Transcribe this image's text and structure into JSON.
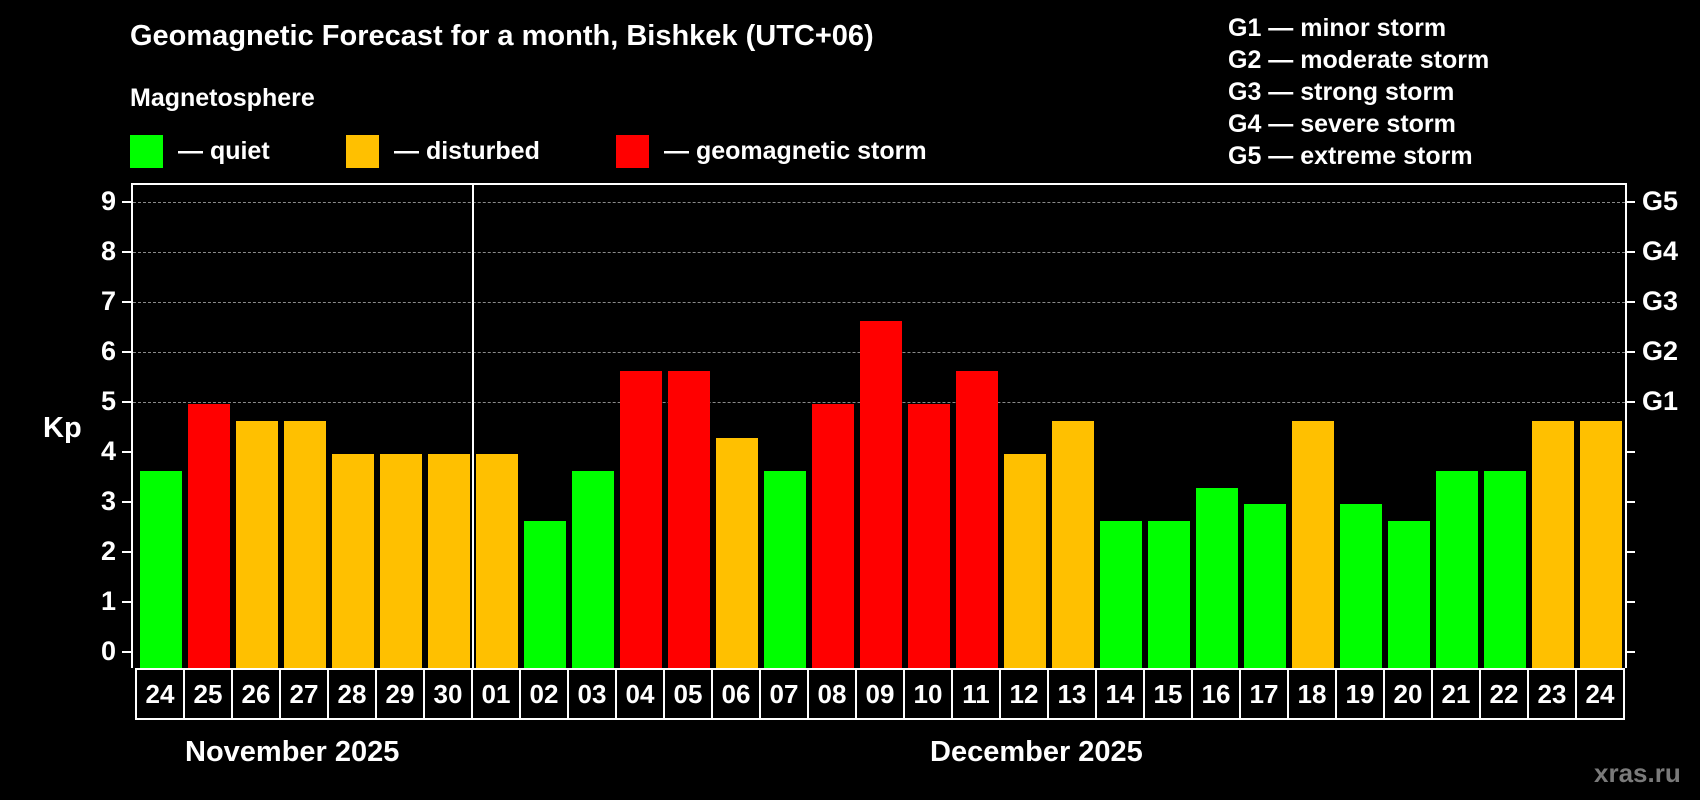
{
  "header": {
    "title": "Geomagnetic Forecast for a month, Bishkek (UTC+06)",
    "subtitle": "Magnetosphere"
  },
  "legend": {
    "items": [
      {
        "label": "— quiet",
        "color": "#00FF00"
      },
      {
        "label": "— disturbed",
        "color": "#FFC000"
      },
      {
        "label": "— geomagnetic storm",
        "color": "#FF0000"
      }
    ],
    "storm_levels": [
      "G1 — minor storm",
      "G2 — moderate storm",
      "G3 — strong storm",
      "G4 — severe storm",
      "G5 — extreme storm"
    ]
  },
  "axis": {
    "ylabel": "Kp",
    "yticks": [
      "0",
      "1",
      "2",
      "3",
      "4",
      "5",
      "6",
      "7",
      "8",
      "9"
    ],
    "right_labels": [
      {
        "kp": 5,
        "label": "G1"
      },
      {
        "kp": 6,
        "label": "G2"
      },
      {
        "kp": 7,
        "label": "G3"
      },
      {
        "kp": 8,
        "label": "G4"
      },
      {
        "kp": 9,
        "label": "G5"
      }
    ]
  },
  "months": [
    {
      "label": "November 2025"
    },
    {
      "label": "December 2025"
    }
  ],
  "watermark": "xras.ru",
  "colors": {
    "quiet": "#00FF00",
    "disturbed": "#FFC000",
    "storm": "#FF0000",
    "grid": "#8a8a8a"
  },
  "chart_data": {
    "type": "bar",
    "title": "Geomagnetic Forecast for a month, Bishkek (UTC+06)",
    "xlabel": "",
    "ylabel": "Kp",
    "ylim": [
      0,
      9
    ],
    "grid": true,
    "categories": [
      "24",
      "25",
      "26",
      "27",
      "28",
      "29",
      "30",
      "01",
      "02",
      "03",
      "04",
      "05",
      "06",
      "07",
      "08",
      "09",
      "10",
      "11",
      "12",
      "13",
      "14",
      "15",
      "16",
      "17",
      "18",
      "19",
      "20",
      "21",
      "22",
      "23",
      "24"
    ],
    "month_groups": [
      {
        "label": "November 2025",
        "days": [
          "24",
          "25",
          "26",
          "27",
          "28",
          "29",
          "30"
        ]
      },
      {
        "label": "December 2025",
        "days": [
          "01",
          "02",
          "03",
          "04",
          "05",
          "06",
          "07",
          "08",
          "09",
          "10",
          "11",
          "12",
          "13",
          "14",
          "15",
          "16",
          "17",
          "18",
          "19",
          "20",
          "21",
          "22",
          "23",
          "24"
        ]
      }
    ],
    "values": [
      3.67,
      5.0,
      4.67,
      4.67,
      4.0,
      4.0,
      4.0,
      4.0,
      2.67,
      3.67,
      5.67,
      5.67,
      4.33,
      3.67,
      5.0,
      6.67,
      5.0,
      5.67,
      4.0,
      4.67,
      2.67,
      2.67,
      3.33,
      3.0,
      4.67,
      3.0,
      2.67,
      3.67,
      3.67,
      4.67,
      4.67
    ],
    "status": [
      "quiet",
      "storm",
      "disturbed",
      "disturbed",
      "disturbed",
      "disturbed",
      "disturbed",
      "disturbed",
      "quiet",
      "quiet",
      "storm",
      "storm",
      "disturbed",
      "quiet",
      "storm",
      "storm",
      "storm",
      "storm",
      "disturbed",
      "disturbed",
      "quiet",
      "quiet",
      "quiet",
      "quiet",
      "disturbed",
      "quiet",
      "quiet",
      "quiet",
      "quiet",
      "disturbed",
      "disturbed"
    ],
    "legend": [
      "quiet",
      "disturbed",
      "geomagnetic storm"
    ],
    "right_axis": {
      "5": "G1",
      "6": "G2",
      "7": "G3",
      "8": "G4",
      "9": "G5"
    }
  }
}
